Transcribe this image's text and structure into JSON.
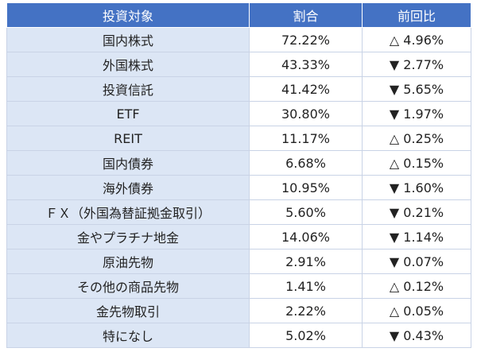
{
  "table": {
    "header": [
      "投資対象",
      "割合",
      "前回比"
    ],
    "rows": [
      [
        "国内株式",
        "72.22%",
        "△ 4.96%"
      ],
      [
        "外国株式",
        "43.33%",
        "▼ 2.77%"
      ],
      [
        "投資信託",
        "41.42%",
        "▼ 5.65%"
      ],
      [
        "ETF",
        "30.80%",
        "▼ 1.97%"
      ],
      [
        "REIT",
        "11.17%",
        "△ 0.25%"
      ],
      [
        "国内債券",
        "6.68%",
        "△ 0.15%"
      ],
      [
        "海外債券",
        "10.95%",
        "▼ 1.60%"
      ],
      [
        "ＦＸ（外国為替証拠金取引）",
        "5.60%",
        "▼ 0.21%"
      ],
      [
        "金やプラチナ地金",
        "14.06%",
        "▼ 1.14%"
      ],
      [
        "原油先物",
        "2.91%",
        "▼ 0.07%"
      ],
      [
        "その他の商品先物",
        "1.41%",
        "△ 0.12%"
      ],
      [
        "金先物取引",
        "2.22%",
        "△ 0.05%"
      ],
      [
        "特になし",
        "5.02%",
        "▼ 0.43%"
      ]
    ]
  }
}
